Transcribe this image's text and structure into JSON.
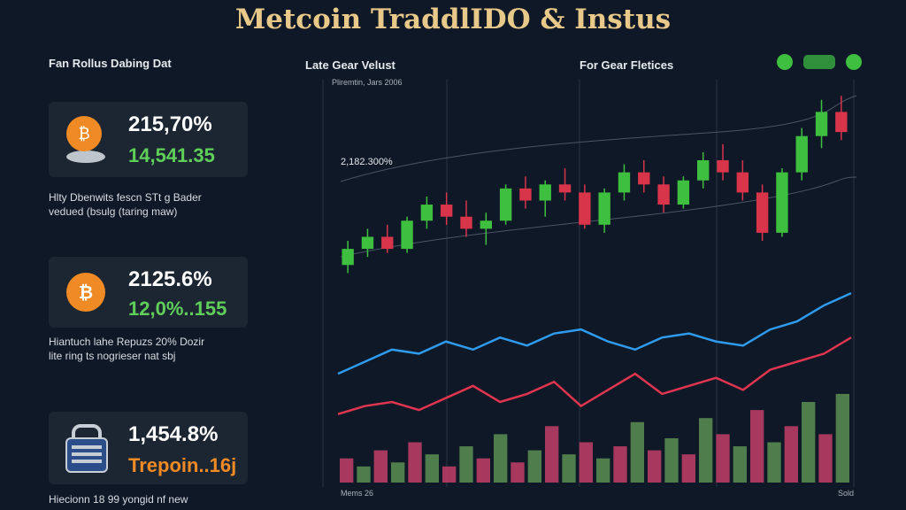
{
  "header": {
    "title": "Metcoin TraddlIDO & Instus"
  },
  "left": {
    "title": "Fan Rollus Dabing Dat",
    "cards": [
      {
        "value": "215,70%",
        "sub": "14,541.35",
        "caption": [
          "Hlty Dbenwits fescn STt g Bader",
          "vedued (bsulg (taring maw)"
        ]
      },
      {
        "value": "2125.6%",
        "sub": "12,0%..155",
        "caption": [
          "Hiantuch lahe Repuzs 20% Dozir",
          "lite ring ts nogrieser nat sbj"
        ]
      },
      {
        "value": "1,454.8%",
        "sub": "Trepoin..16j",
        "caption": [
          "Hiecionn 18 99 yongid nf new"
        ]
      }
    ]
  },
  "chart": {
    "title": "Late Gear Velust",
    "subtitle": "For Gear Fletices",
    "note": "Pliremtin, Jars 2006",
    "annotation": "2,182.300%",
    "x_start": "Mems 26",
    "x_end": "Sold",
    "ylim": [
      0,
      100
    ],
    "up_color": "#3fbf3f",
    "down_color": "#d8344a",
    "candles": [
      [
        54,
        60,
        52,
        58
      ],
      [
        58,
        63,
        56,
        61
      ],
      [
        61,
        64,
        57,
        58
      ],
      [
        58,
        66,
        57,
        65
      ],
      [
        65,
        71,
        63,
        69
      ],
      [
        69,
        72,
        64,
        66
      ],
      [
        66,
        70,
        61,
        63
      ],
      [
        63,
        67,
        59,
        65
      ],
      [
        65,
        74,
        64,
        73
      ],
      [
        73,
        76,
        68,
        70
      ],
      [
        70,
        75,
        66,
        74
      ],
      [
        74,
        78,
        70,
        72
      ],
      [
        72,
        74,
        63,
        64
      ],
      [
        64,
        73,
        62,
        72
      ],
      [
        72,
        79,
        70,
        77
      ],
      [
        77,
        80,
        72,
        74
      ],
      [
        74,
        76,
        67,
        69
      ],
      [
        69,
        76,
        68,
        75
      ],
      [
        75,
        82,
        73,
        80
      ],
      [
        80,
        84,
        75,
        77
      ],
      [
        77,
        80,
        70,
        72
      ],
      [
        72,
        74,
        60,
        62
      ],
      [
        62,
        78,
        61,
        77
      ],
      [
        77,
        88,
        75,
        86
      ],
      [
        86,
        95,
        83,
        92
      ],
      [
        92,
        96,
        85,
        87
      ]
    ],
    "lines": [
      {
        "color": "#2f9bef",
        "values": [
          27,
          30,
          33,
          32,
          35,
          33,
          36,
          34,
          37,
          38,
          35,
          33,
          36,
          37,
          35,
          34,
          38,
          40,
          44,
          47
        ]
      },
      {
        "color": "#e0354f",
        "values": [
          17,
          19,
          20,
          18,
          21,
          24,
          20,
          22,
          25,
          19,
          23,
          27,
          22,
          24,
          26,
          23,
          28,
          30,
          32,
          36
        ]
      }
    ],
    "volume_colors": [
      "#c2406a",
      "#5a8f52"
    ],
    "volume": [
      6,
      4,
      8,
      5,
      10,
      7,
      4,
      9,
      6,
      12,
      5,
      8,
      14,
      7,
      10,
      6,
      9,
      15,
      8,
      11,
      7,
      16,
      12,
      9,
      18,
      10,
      14,
      20,
      12,
      22
    ]
  }
}
